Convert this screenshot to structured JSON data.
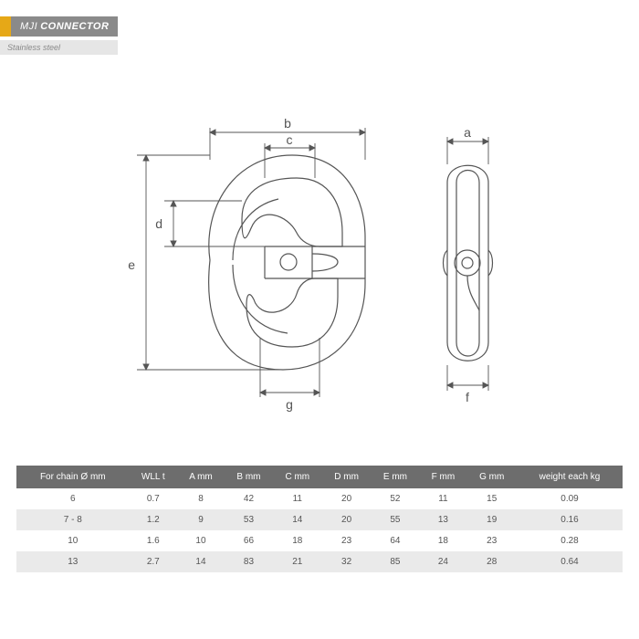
{
  "header": {
    "accent_color": "#e6a817",
    "title_bg": "#8a8a8a",
    "title_prefix": "MJI",
    "title_main": "CONNECTOR",
    "subtitle_bg": "#e6e6e6",
    "subtitle": "Stainless steel"
  },
  "diagram": {
    "stroke_color": "#555555",
    "stroke_width": 1.2,
    "dim_stroke": "#555555",
    "dim_labels": {
      "a": "a",
      "b": "b",
      "c": "c",
      "d": "d",
      "e": "e",
      "f": "f",
      "g": "g"
    }
  },
  "table": {
    "header_bg": "#6d6d6d",
    "row_odd_bg": "#ffffff",
    "row_even_bg": "#eaeaea",
    "text_color": "#555555",
    "columns": [
      "For chain Ø mm",
      "WLL t",
      "A mm",
      "B mm",
      "C mm",
      "D mm",
      "E mm",
      "F mm",
      "G mm",
      "weight each kg"
    ],
    "rows": [
      [
        "6",
        "0.7",
        "8",
        "42",
        "11",
        "20",
        "52",
        "11",
        "15",
        "0.09"
      ],
      [
        "7 - 8",
        "1.2",
        "9",
        "53",
        "14",
        "20",
        "55",
        "13",
        "19",
        "0.16"
      ],
      [
        "10",
        "1.6",
        "10",
        "66",
        "18",
        "23",
        "64",
        "18",
        "23",
        "0.28"
      ],
      [
        "13",
        "2.7",
        "14",
        "83",
        "21",
        "32",
        "85",
        "24",
        "28",
        "0.64"
      ]
    ]
  }
}
